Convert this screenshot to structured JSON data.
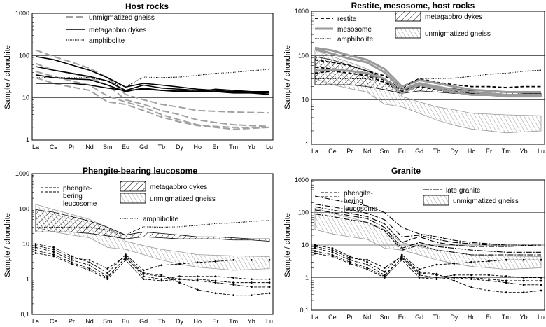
{
  "chart_data": [
    {
      "type": "line",
      "title": "Host rocks",
      "ylabel": "Sample / chondrite",
      "yscale": "log",
      "ylim": [
        1,
        1000
      ],
      "yticks": [
        "1",
        "10",
        "100",
        "1000"
      ],
      "categories": [
        "La",
        "Ce",
        "Pr",
        "Nd",
        "Sm",
        "Eu",
        "Gd",
        "Tb",
        "Dy",
        "Ho",
        "Er",
        "Tm",
        "Yb",
        "Lu"
      ],
      "legend": [
        "unmigmatized gneiss",
        "metagabbro dykes",
        "amphibolite"
      ],
      "series": [
        {
          "name": "unmigmatized gneiss",
          "values": [
            135,
            95,
            70,
            50,
            30,
            12,
            9,
            7,
            6,
            5,
            4.8,
            4.6,
            4.5,
            4.4
          ]
        },
        {
          "name": "unmigmatized gneiss",
          "values": [
            65,
            45,
            38,
            30,
            20,
            9,
            7,
            5,
            4,
            3,
            2.6,
            2.3,
            2.2,
            2.1
          ]
        },
        {
          "name": "unmigmatized gneiss",
          "values": [
            42,
            32,
            25,
            20,
            11,
            8,
            6,
            4,
            3,
            2.3,
            2.1,
            2.0,
            2.0,
            2.0
          ]
        },
        {
          "name": "unmigmatized gneiss",
          "values": [
            30,
            22,
            18,
            15,
            8,
            7,
            5,
            3.5,
            2.7,
            2.2,
            2.0,
            1.8,
            1.9,
            2.0
          ]
        },
        {
          "name": "metagabbro dykes",
          "values": [
            95,
            80,
            60,
            45,
            30,
            18,
            22,
            20,
            18,
            16,
            15,
            14,
            14,
            13
          ]
        },
        {
          "name": "metagabbro dykes",
          "values": [
            55,
            45,
            38,
            32,
            25,
            15,
            20,
            17,
            16,
            15,
            14,
            14,
            13,
            13
          ]
        },
        {
          "name": "metagabbro dykes",
          "values": [
            35,
            30,
            28,
            27,
            20,
            14,
            17,
            15,
            14,
            14,
            14,
            13,
            13,
            12
          ]
        },
        {
          "name": "metagabbro dykes",
          "values": [
            22,
            22,
            22,
            20,
            17,
            15,
            16,
            15,
            15,
            14,
            16,
            15,
            14,
            14
          ]
        },
        {
          "name": "amphibolite",
          "values": [
            30,
            30,
            30,
            30,
            25,
            18,
            31,
            30,
            31,
            34,
            38,
            40,
            44,
            47
          ]
        }
      ]
    },
    {
      "type": "line",
      "title": "Restite, mesosome, host rocks",
      "ylabel": "Sample / chondrite",
      "yscale": "log",
      "ylim": [
        1,
        1000
      ],
      "yticks": [
        "1",
        "10",
        "100",
        "1000"
      ],
      "categories": [
        "La",
        "Ce",
        "Pr",
        "Nd",
        "Sm",
        "Eu",
        "Gd",
        "Tb",
        "Dy",
        "Ho",
        "Er",
        "Tm",
        "Yb",
        "Lu"
      ],
      "legend": [
        "restite",
        "mesosome",
        "amphibolite",
        "metagabbro dykes",
        "unmigmatized gneiss"
      ],
      "bands": [
        {
          "name": "unmigmatized gneiss",
          "upper": [
            135,
            95,
            70,
            50,
            30,
            12,
            9,
            7,
            6,
            5,
            4.8,
            4.6,
            4.5,
            4.4
          ],
          "lower": [
            30,
            22,
            18,
            15,
            8,
            7,
            5,
            3.5,
            2.7,
            2.2,
            2.0,
            1.8,
            1.9,
            2.0
          ]
        },
        {
          "name": "metagabbro dykes",
          "upper": [
            95,
            80,
            60,
            45,
            30,
            18,
            22,
            20,
            18,
            16,
            16,
            15,
            14,
            14
          ],
          "lower": [
            22,
            22,
            22,
            20,
            17,
            14,
            16,
            15,
            14,
            14,
            14,
            13,
            13,
            12
          ]
        }
      ],
      "series": [
        {
          "name": "restite",
          "values": [
            80,
            70,
            60,
            45,
            35,
            20,
            30,
            25,
            22,
            20,
            20,
            19,
            20,
            20
          ]
        },
        {
          "name": "restite",
          "values": [
            55,
            50,
            45,
            38,
            28,
            16,
            22,
            19,
            16,
            14,
            13,
            12,
            12,
            12
          ]
        },
        {
          "name": "restite",
          "values": [
            40,
            45,
            40,
            35,
            25,
            15,
            20,
            17,
            15,
            14,
            13,
            13,
            13,
            13
          ]
        },
        {
          "name": "mesosome",
          "values": [
            150,
            130,
            100,
            80,
            50,
            20,
            28,
            24,
            20,
            17,
            16,
            15,
            15,
            15
          ]
        },
        {
          "name": "mesosome",
          "values": [
            140,
            110,
            85,
            70,
            42,
            17,
            24,
            20,
            17,
            15,
            14,
            13,
            13,
            13
          ]
        },
        {
          "name": "mesosome",
          "values": [
            45,
            48,
            45,
            40,
            30,
            14,
            22,
            18,
            15,
            13,
            13,
            12,
            12,
            12
          ]
        },
        {
          "name": "amphibolite",
          "values": [
            30,
            30,
            30,
            30,
            25,
            18,
            31,
            30,
            31,
            34,
            38,
            40,
            44,
            47
          ]
        }
      ]
    },
    {
      "type": "line",
      "title": "Phengite-bearing leucosome",
      "ylabel": "Sample / chondrite",
      "yscale": "log",
      "ylim": [
        0.1,
        1000
      ],
      "yticks": [
        "0,1",
        "1",
        "10",
        "100",
        "1000"
      ],
      "categories": [
        "La",
        "Ce",
        "Pr",
        "Nd",
        "Sm",
        "Eu",
        "Gd",
        "Tb",
        "Dy",
        "Ho",
        "Er",
        "Tm",
        "Yb",
        "Lu"
      ],
      "legend": [
        "phengite-",
        "bering",
        "leucosome",
        "metagabbro dykes",
        "unmigmatized gneiss",
        "amphibolite"
      ],
      "bands": [
        {
          "name": "unmigmatized gneiss",
          "upper": [
            135,
            95,
            70,
            50,
            30,
            12,
            9,
            7,
            6,
            5,
            4.8,
            4.6,
            4.5,
            4.4
          ],
          "lower": [
            30,
            22,
            18,
            15,
            8,
            7,
            5,
            3.5,
            2.7,
            2.2,
            2.0,
            1.8,
            1.9,
            2.0
          ]
        },
        {
          "name": "metagabbro dykes",
          "upper": [
            95,
            80,
            60,
            45,
            30,
            18,
            22,
            20,
            18,
            16,
            16,
            15,
            14,
            14
          ],
          "lower": [
            22,
            22,
            22,
            20,
            17,
            14,
            16,
            15,
            14,
            14,
            14,
            13,
            13,
            12
          ]
        }
      ],
      "series": [
        {
          "name": "leucosome",
          "values": [
            10,
            8,
            4.5,
            3,
            1.5,
            5,
            1.8,
            2.5,
            2.7,
            3,
            3.2,
            3.5,
            3.5,
            3.5
          ]
        },
        {
          "name": "leucosome",
          "values": [
            9,
            7,
            4,
            3.5,
            2,
            4.5,
            1.5,
            1.3,
            0.8,
            0.5,
            0.4,
            0.35,
            0.35,
            0.4
          ]
        },
        {
          "name": "leucosome",
          "values": [
            8,
            6,
            3.5,
            2.5,
            1.2,
            4,
            1.4,
            1.2,
            1.0,
            0.9,
            0.8,
            0.7,
            0.6,
            0.6
          ]
        },
        {
          "name": "leucosome",
          "values": [
            6.5,
            5,
            3,
            2,
            1.1,
            4.2,
            1.2,
            1.0,
            1.2,
            1.2,
            1.2,
            1.1,
            1.0,
            1.0
          ]
        },
        {
          "name": "leucosome",
          "values": [
            5.5,
            4.5,
            2.7,
            1.8,
            1.0,
            3.5,
            1.0,
            0.9,
            1.0,
            1.0,
            0.9,
            0.8,
            0.8,
            0.8
          ]
        },
        {
          "name": "amphibolite",
          "values": [
            30,
            30,
            30,
            30,
            25,
            18,
            31,
            30,
            31,
            34,
            38,
            40,
            44,
            47
          ]
        }
      ]
    },
    {
      "type": "line",
      "title": "Granite",
      "ylabel": "Sample / chondrite",
      "yscale": "log",
      "ylim": [
        0.1,
        1000
      ],
      "yticks": [
        "0,1",
        "1",
        "10",
        "100",
        "1000"
      ],
      "categories": [
        "La",
        "Ce",
        "Pr",
        "Nd",
        "Sm",
        "Eu",
        "Gd",
        "Tb",
        "Dy",
        "Ho",
        "Er",
        "Tm",
        "Yb",
        "Lu"
      ],
      "legend": [
        "phengite-",
        "bering",
        "leucosome",
        "late granite",
        "unmigmatized gneiss"
      ],
      "bands": [
        {
          "name": "unmigmatized gneiss",
          "upper": [
            135,
            95,
            70,
            50,
            30,
            12,
            9,
            7,
            6,
            5,
            4.8,
            4.6,
            4.5,
            4.4
          ],
          "lower": [
            30,
            22,
            18,
            15,
            8,
            7,
            5,
            3.5,
            2.7,
            2.2,
            2.0,
            1.8,
            1.9,
            2.0
          ]
        }
      ],
      "series": [
        {
          "name": "late granite",
          "values": [
            320,
            250,
            200,
            160,
            100,
            35,
            22,
            18,
            14,
            12,
            11,
            10,
            10,
            10
          ]
        },
        {
          "name": "late granite",
          "values": [
            180,
            150,
            120,
            95,
            60,
            18,
            20,
            15,
            12,
            11,
            10,
            10,
            10,
            10
          ]
        },
        {
          "name": "late granite",
          "values": [
            150,
            120,
            95,
            75,
            45,
            12,
            18,
            12,
            10,
            9,
            9,
            9,
            9.5,
            10
          ]
        },
        {
          "name": "late granite",
          "values": [
            120,
            100,
            80,
            65,
            35,
            8,
            12,
            9,
            8,
            7,
            6.5,
            6,
            6,
            6
          ]
        },
        {
          "name": "late granite",
          "values": [
            90,
            75,
            60,
            50,
            28,
            7,
            10,
            7,
            6,
            5,
            5,
            5,
            5,
            5
          ]
        },
        {
          "name": "leucosome",
          "values": [
            10,
            8,
            4.5,
            3,
            1.5,
            5,
            1.8,
            2.5,
            2.7,
            3,
            3.2,
            3.5,
            3.5,
            3.5
          ]
        },
        {
          "name": "leucosome",
          "values": [
            9,
            7,
            4,
            3.5,
            2,
            4.5,
            1.5,
            1.3,
            0.8,
            0.5,
            0.4,
            0.35,
            0.35,
            0.4
          ]
        },
        {
          "name": "leucosome",
          "values": [
            8,
            6,
            3.5,
            2.5,
            1.2,
            4,
            1.4,
            1.2,
            1.0,
            0.9,
            0.8,
            0.7,
            0.6,
            0.6
          ]
        },
        {
          "name": "leucosome",
          "values": [
            6.5,
            5,
            3,
            2,
            1.1,
            4.2,
            1.2,
            1.0,
            1.2,
            1.2,
            1.2,
            1.1,
            1.0,
            1.0
          ]
        },
        {
          "name": "leucosome",
          "values": [
            5.5,
            4.5,
            2.7,
            1.8,
            1.0,
            3.5,
            1.0,
            0.9,
            1.0,
            1.0,
            0.9,
            0.8,
            0.8,
            0.8
          ]
        }
      ]
    }
  ]
}
